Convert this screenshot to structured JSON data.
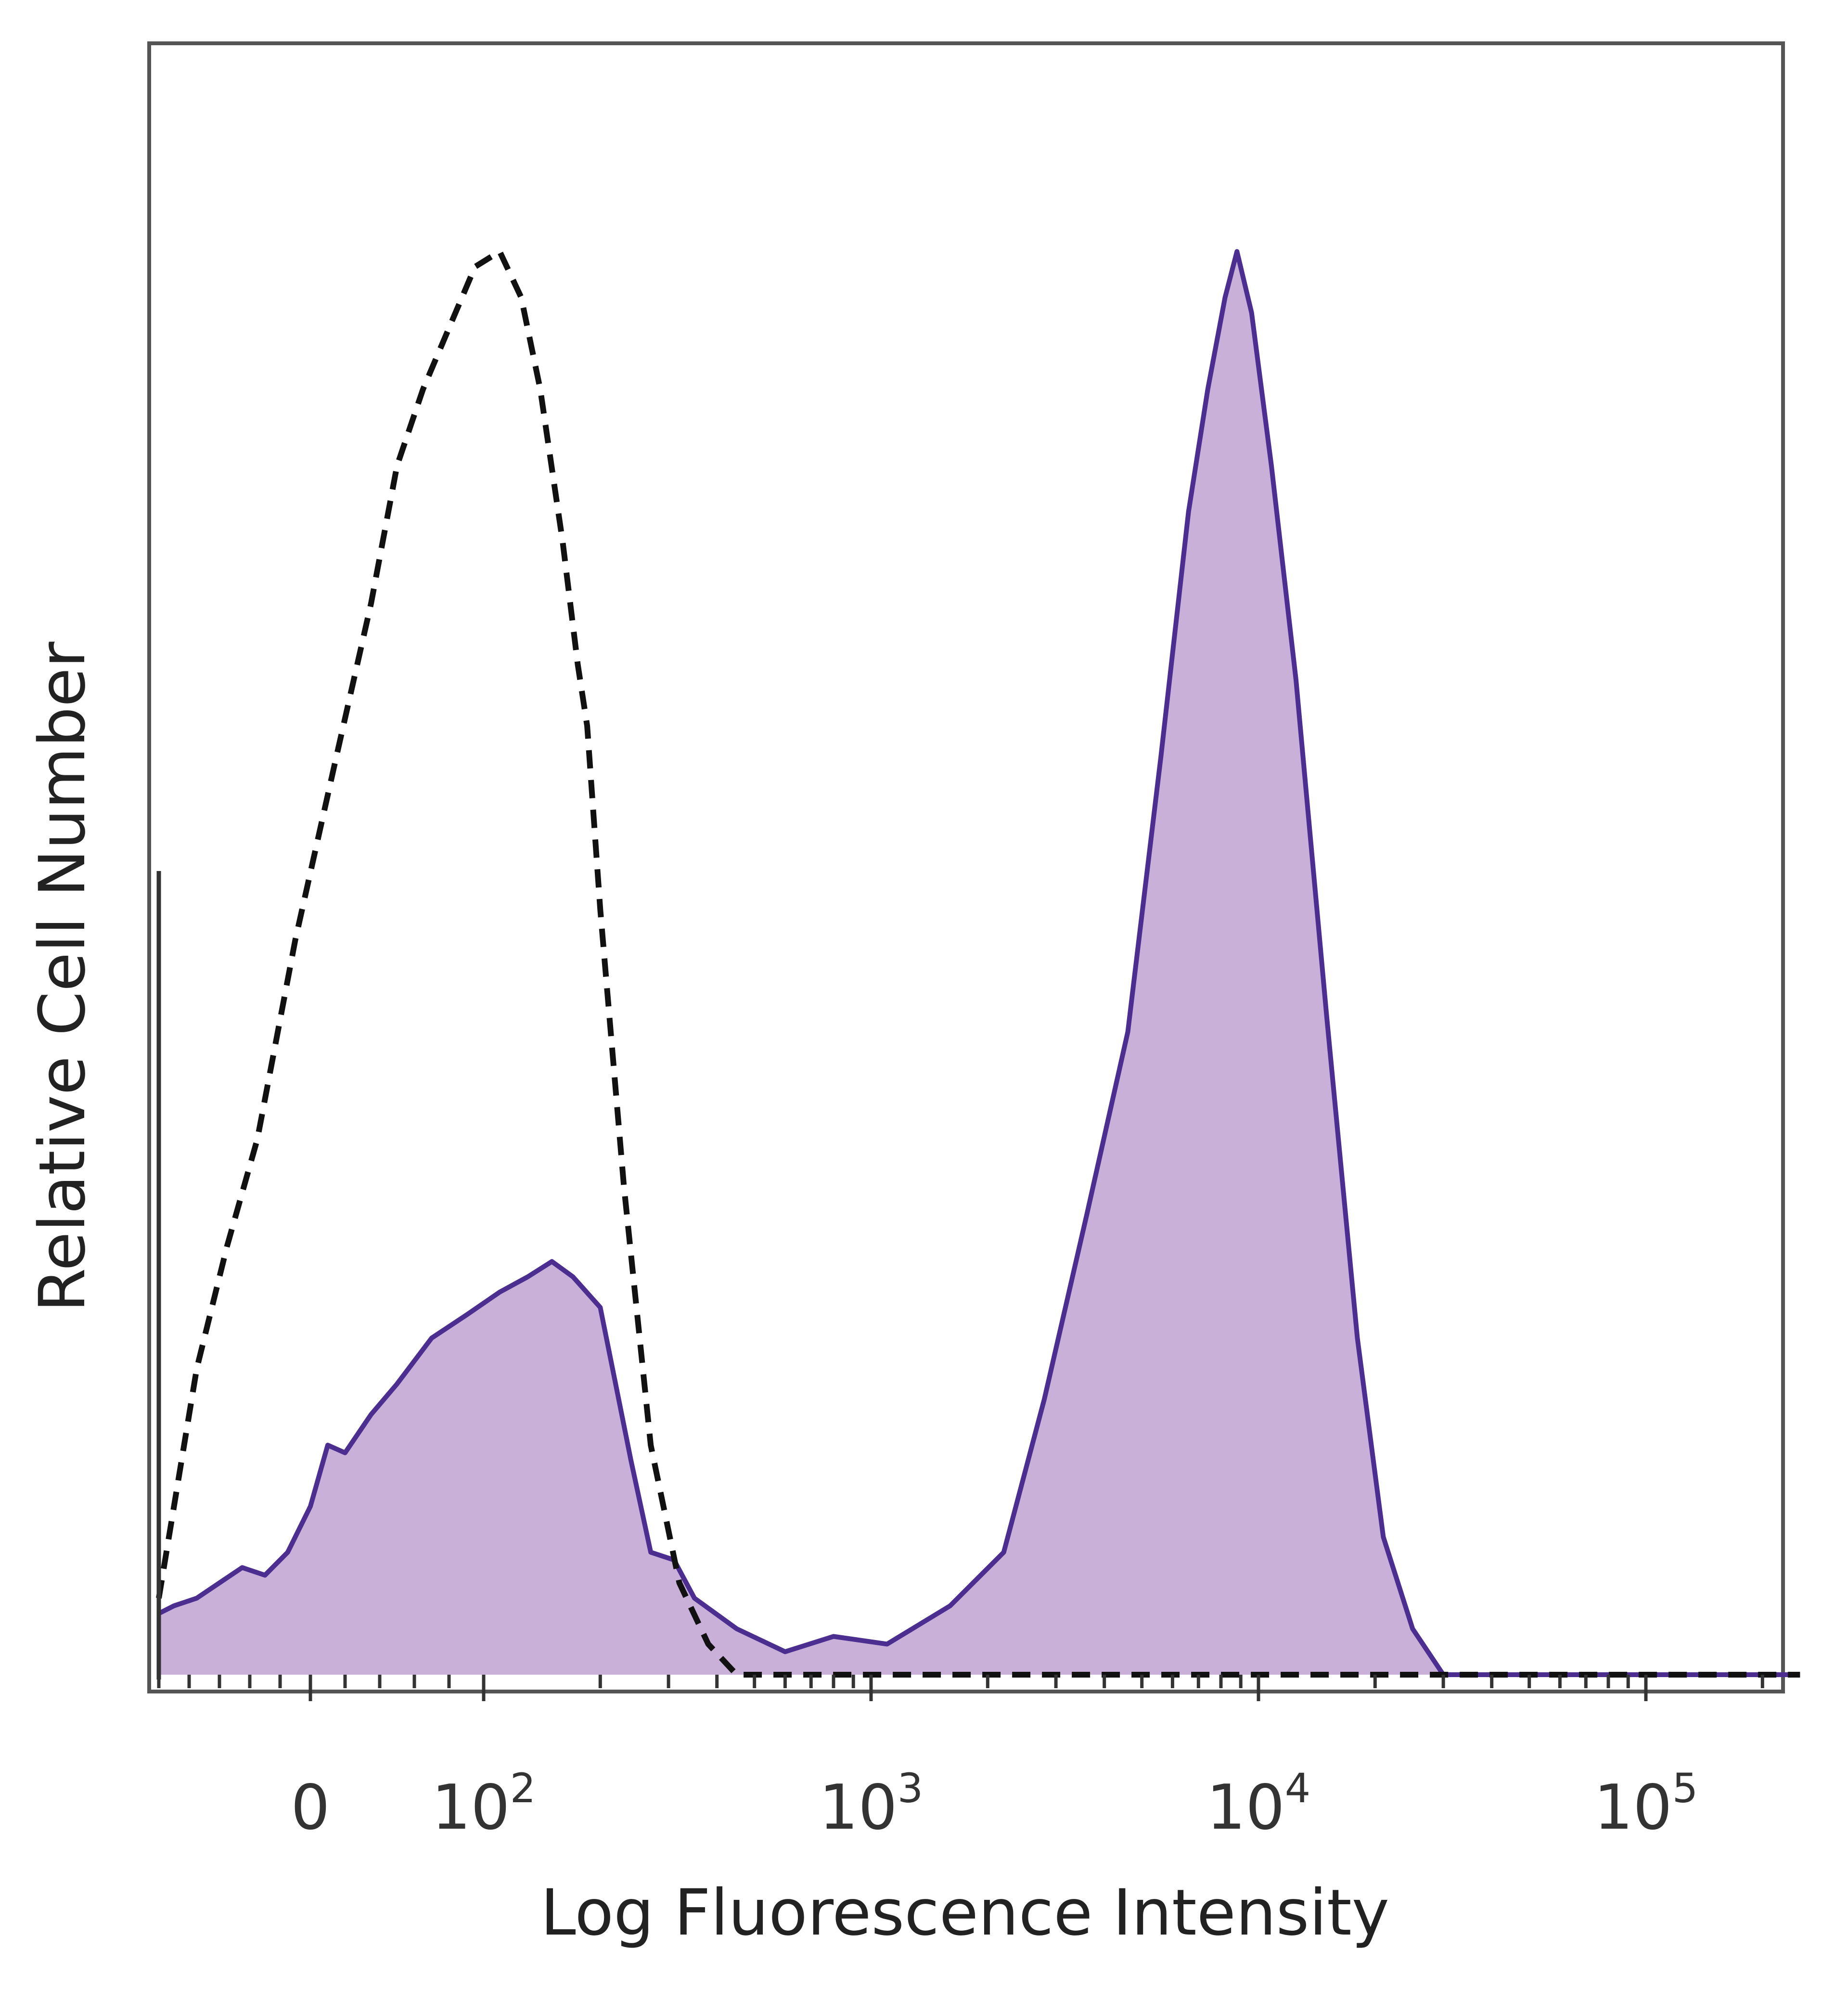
{
  "chart_data": {
    "type": "area",
    "title": "",
    "xlabel": "Log Fluorescence Intensity",
    "ylabel": "Relative Cell Number",
    "x_scale": "biexponential (log above 10^2)",
    "xlim": [
      -100,
      250000
    ],
    "ylim": [
      0,
      100
    ],
    "x_ticks": [
      {
        "value": 0,
        "base": "0",
        "exp": ""
      },
      {
        "value": 100,
        "base": "10",
        "exp": "2"
      },
      {
        "value": 1000,
        "base": "10",
        "exp": "3"
      },
      {
        "value": 10000,
        "base": "10",
        "exp": "4"
      },
      {
        "value": 100000,
        "base": "10",
        "exp": "5"
      }
    ],
    "grid": false,
    "legend": "none",
    "series": [
      {
        "style": "dashed-outline",
        "color": "#111111",
        "points": [
          [
            -100,
            5
          ],
          [
            -75,
            20
          ],
          [
            -55,
            28
          ],
          [
            -35,
            35
          ],
          [
            -10,
            48
          ],
          [
            15,
            60
          ],
          [
            35,
            70
          ],
          [
            50,
            79
          ],
          [
            65,
            84
          ],
          [
            80,
            88
          ],
          [
            95,
            92
          ],
          [
            110,
            93
          ],
          [
            125,
            90
          ],
          [
            140,
            84
          ],
          [
            160,
            74
          ],
          [
            175,
            66
          ],
          [
            185,
            62
          ],
          [
            200,
            50
          ],
          [
            230,
            32
          ],
          [
            270,
            15
          ],
          [
            320,
            6
          ],
          [
            380,
            2
          ],
          [
            450,
            0
          ],
          [
            700,
            0
          ],
          [
            100000,
            0
          ],
          [
            250000,
            0
          ]
        ]
      },
      {
        "style": "filled",
        "color": "#4b2e8f",
        "fill": "#c9b0d9",
        "points": [
          [
            -100,
            4
          ],
          [
            -90,
            4.5
          ],
          [
            -75,
            5
          ],
          [
            -60,
            6
          ],
          [
            -45,
            7
          ],
          [
            -30,
            6.5
          ],
          [
            -15,
            8
          ],
          [
            0,
            11
          ],
          [
            10,
            15
          ],
          [
            20,
            14.5
          ],
          [
            35,
            17
          ],
          [
            50,
            19
          ],
          [
            70,
            22
          ],
          [
            90,
            23.5
          ],
          [
            110,
            25
          ],
          [
            130,
            26
          ],
          [
            150,
            27
          ],
          [
            170,
            26
          ],
          [
            200,
            24
          ],
          [
            240,
            14
          ],
          [
            270,
            8
          ],
          [
            310,
            7.5
          ],
          [
            350,
            5
          ],
          [
            450,
            3
          ],
          [
            600,
            1.5
          ],
          [
            800,
            2.5
          ],
          [
            1100,
            2
          ],
          [
            1600,
            4.5
          ],
          [
            2200,
            8
          ],
          [
            2800,
            18
          ],
          [
            3600,
            30
          ],
          [
            4600,
            42
          ],
          [
            5600,
            60
          ],
          [
            6600,
            76
          ],
          [
            7400,
            84
          ],
          [
            8200,
            90
          ],
          [
            8800,
            93
          ],
          [
            9600,
            89
          ],
          [
            10800,
            79
          ],
          [
            12500,
            65
          ],
          [
            15000,
            43
          ],
          [
            18000,
            22
          ],
          [
            21000,
            9
          ],
          [
            25000,
            3
          ],
          [
            30000,
            0
          ],
          [
            40000,
            0
          ],
          [
            250000,
            0
          ]
        ]
      }
    ]
  }
}
